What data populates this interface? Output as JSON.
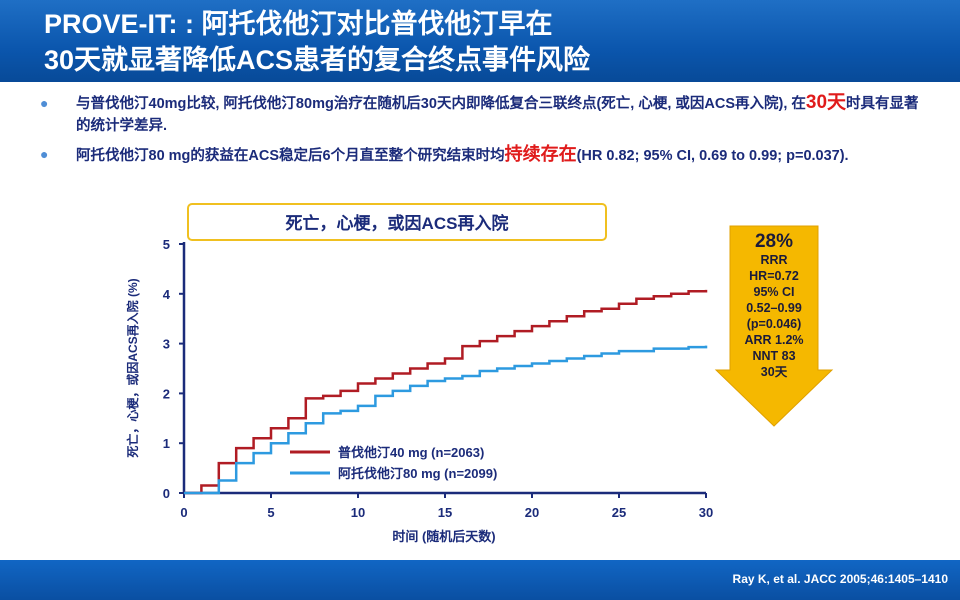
{
  "header": {
    "title_line1": "PROVE-IT: : 阿托伐他汀对比普伐他汀早在",
    "title_line2": "30天就显著降低ACS患者的复合终点事件风险"
  },
  "bullets": [
    {
      "pre": "与普伐他汀40mg比较, 阿托伐他汀80mg治疗在随机后30天内即降低复合三联终点(死亡, 心梗, 或因ACS再入院), 在",
      "highlight": "30天",
      "post": "时具有显著的统计学差异."
    },
    {
      "pre": "阿托伐他汀80 mg的获益在ACS稳定后6个月直至整个研究结束时均",
      "highlight": "持续存在",
      "post": "(HR  0.82; 95% CI, 0.69 to 0.99; p=0.037)."
    }
  ],
  "callout": {
    "lines": [
      "28%",
      "RRR",
      "HR=0.72",
      "95% CI",
      "0.52–0.99",
      "(p=0.046)",
      "ARR 1.2%",
      "NNT 83",
      "30天"
    ],
    "color": "#f5b800"
  },
  "chart_data": {
    "type": "line",
    "title": "死亡，心梗，或因ACS再入院",
    "xlabel": "时间 (随机后天数)",
    "ylabel": "死亡，心梗，或因ACS再入院 (%)",
    "xlim": [
      0,
      30
    ],
    "ylim": [
      0,
      5
    ],
    "xticks": [
      0,
      5,
      10,
      15,
      20,
      25,
      30
    ],
    "yticks": [
      0,
      1,
      2,
      3,
      4,
      5
    ],
    "legend_position": "bottom-left inside",
    "series": [
      {
        "name": "普伐他汀40 mg (n=2063)",
        "color": "#b01c24",
        "steps": [
          [
            0,
            0
          ],
          [
            1,
            0.15
          ],
          [
            2,
            0.6
          ],
          [
            3,
            0.9
          ],
          [
            4,
            1.1
          ],
          [
            5,
            1.3
          ],
          [
            6,
            1.5
          ],
          [
            7,
            1.9
          ],
          [
            8,
            1.95
          ],
          [
            9,
            2.05
          ],
          [
            10,
            2.2
          ],
          [
            11,
            2.3
          ],
          [
            12,
            2.4
          ],
          [
            13,
            2.5
          ],
          [
            14,
            2.6
          ],
          [
            15,
            2.7
          ],
          [
            16,
            2.95
          ],
          [
            17,
            3.05
          ],
          [
            18,
            3.15
          ],
          [
            19,
            3.25
          ],
          [
            20,
            3.35
          ],
          [
            21,
            3.45
          ],
          [
            22,
            3.55
          ],
          [
            23,
            3.65
          ],
          [
            24,
            3.7
          ],
          [
            25,
            3.8
          ],
          [
            26,
            3.9
          ],
          [
            27,
            3.95
          ],
          [
            28,
            4.0
          ],
          [
            29,
            4.05
          ],
          [
            30,
            4.08
          ]
        ]
      },
      {
        "name": "阿托伐他汀80 mg (n=2099)",
        "color": "#2d9ae0",
        "steps": [
          [
            0,
            0
          ],
          [
            1,
            0
          ],
          [
            2,
            0.25
          ],
          [
            3,
            0.6
          ],
          [
            4,
            0.8
          ],
          [
            5,
            1.0
          ],
          [
            6,
            1.2
          ],
          [
            7,
            1.4
          ],
          [
            8,
            1.6
          ],
          [
            9,
            1.65
          ],
          [
            10,
            1.75
          ],
          [
            11,
            1.95
          ],
          [
            12,
            2.05
          ],
          [
            13,
            2.15
          ],
          [
            14,
            2.25
          ],
          [
            15,
            2.3
          ],
          [
            16,
            2.35
          ],
          [
            17,
            2.45
          ],
          [
            18,
            2.5
          ],
          [
            19,
            2.55
          ],
          [
            20,
            2.6
          ],
          [
            21,
            2.65
          ],
          [
            22,
            2.7
          ],
          [
            23,
            2.75
          ],
          [
            24,
            2.8
          ],
          [
            25,
            2.85
          ],
          [
            26,
            2.85
          ],
          [
            27,
            2.9
          ],
          [
            28,
            2.9
          ],
          [
            29,
            2.93
          ],
          [
            30,
            2.96
          ]
        ]
      }
    ]
  },
  "footer": {
    "reference": "Ray K, et al. JACC 2005;46:1405–1410"
  }
}
